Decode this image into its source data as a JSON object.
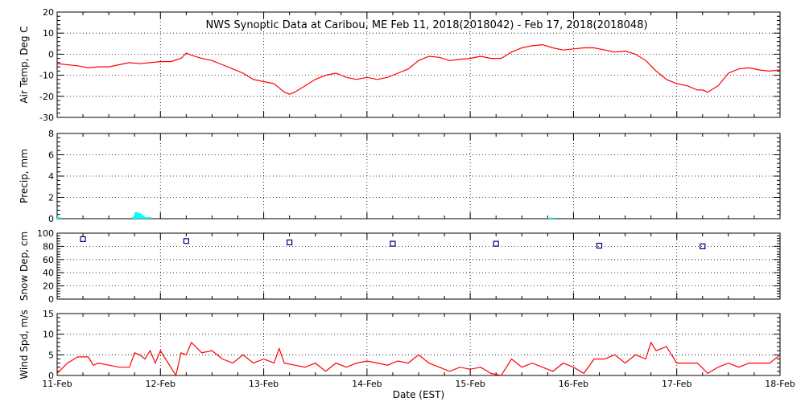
{
  "figure": {
    "title": "NWS Synoptic Data at Caribou, ME   Feb 11, 2018(2018042) - Feb 17, 2018(2018048)",
    "xlabel": "Date (EST)",
    "x_tick_labels": [
      "11-Feb",
      "12-Feb",
      "13-Feb",
      "14-Feb",
      "15-Feb",
      "16-Feb",
      "17-Feb",
      "18-Feb"
    ],
    "colors": {
      "line": "#ff0000",
      "precip": "#00ffff",
      "snow": "#000080",
      "axis": "#000000",
      "background": "#ffffff"
    }
  },
  "chart_data": [
    {
      "type": "line",
      "ylabel": "Air Temp, Deg C",
      "xlim": [
        0,
        7
      ],
      "ylim": [
        -30,
        20
      ],
      "y_ticks": [
        -30,
        -20,
        -10,
        0,
        10,
        20
      ],
      "grid": true,
      "x_unit": "days since 11-Feb 00:00 EST",
      "x": [
        0,
        0.2,
        0.3,
        0.4,
        0.5,
        0.6,
        0.7,
        0.8,
        0.9,
        1.0,
        1.1,
        1.2,
        1.25,
        1.3,
        1.4,
        1.5,
        1.6,
        1.7,
        1.8,
        1.9,
        2.0,
        2.1,
        2.15,
        2.2,
        2.25,
        2.3,
        2.4,
        2.5,
        2.6,
        2.7,
        2.8,
        2.9,
        3.0,
        3.1,
        3.2,
        3.3,
        3.4,
        3.5,
        3.6,
        3.7,
        3.8,
        3.9,
        4.0,
        4.1,
        4.2,
        4.3,
        4.4,
        4.5,
        4.6,
        4.7,
        4.8,
        4.9,
        5.0,
        5.1,
        5.2,
        5.3,
        5.4,
        5.5,
        5.6,
        5.7,
        5.8,
        5.9,
        6.0,
        6.1,
        6.2,
        6.25,
        6.3,
        6.4,
        6.5,
        6.6,
        6.7,
        6.8,
        6.9,
        7.0
      ],
      "series": [
        {
          "values": [
            -4.5,
            -5.5,
            -6.5,
            -6,
            -6,
            -5,
            -4,
            -4.5,
            -4,
            -3.5,
            -3.5,
            -2,
            0.5,
            -0.5,
            -2,
            -3,
            -5,
            -7,
            -9,
            -12,
            -13,
            -14,
            -16,
            -18,
            -19,
            -18,
            -15,
            -12,
            -10,
            -9,
            -11,
            -12,
            -11,
            -12,
            -11,
            -9,
            -7,
            -3,
            -1,
            -1.5,
            -3,
            -2.5,
            -2,
            -1,
            -2,
            -2,
            1,
            3,
            4,
            4.5,
            3,
            2,
            2.5,
            3,
            3,
            2,
            1,
            1.5,
            0,
            -3,
            -8,
            -12,
            -14,
            -15,
            -17,
            -17,
            -18,
            -15,
            -9,
            -7,
            -6.5,
            -7.5,
            -8,
            -7.5
          ]
        }
      ]
    },
    {
      "type": "bar",
      "ylabel": "Precip, mm",
      "xlim": [
        0,
        7
      ],
      "ylim": [
        0,
        8
      ],
      "y_ticks": [
        0,
        2,
        4,
        6,
        8
      ],
      "grid": true,
      "x_unit": "days since 11-Feb 00:00 EST",
      "x": [
        0.0,
        0.72,
        0.75,
        0.78,
        0.81,
        0.84,
        0.87,
        4.75,
        4.78
      ],
      "values": [
        0.15,
        0.15,
        0.6,
        0.5,
        0.3,
        0.15,
        0.15,
        0.1,
        0.1
      ]
    },
    {
      "type": "scatter",
      "ylabel": "Snow Dep, cm",
      "xlim": [
        0,
        7
      ],
      "ylim": [
        0,
        100
      ],
      "y_ticks": [
        0,
        20,
        40,
        60,
        80,
        100
      ],
      "grid": true,
      "x_unit": "days since 11-Feb 00:00 EST",
      "x": [
        0.25,
        1.25,
        2.25,
        3.25,
        4.25,
        5.25,
        6.25
      ],
      "values": [
        91,
        88,
        86,
        84,
        84,
        81,
        80
      ]
    },
    {
      "type": "line",
      "ylabel": "Wind Spd, m/s",
      "xlim": [
        0,
        7
      ],
      "ylim": [
        0,
        15
      ],
      "y_ticks": [
        0,
        5,
        10,
        15
      ],
      "grid": true,
      "x_unit": "days since 11-Feb 00:00 EST",
      "x": [
        0,
        0.1,
        0.2,
        0.3,
        0.35,
        0.4,
        0.5,
        0.6,
        0.7,
        0.75,
        0.8,
        0.85,
        0.9,
        0.95,
        1.0,
        1.05,
        1.1,
        1.15,
        1.2,
        1.25,
        1.3,
        1.4,
        1.5,
        1.6,
        1.7,
        1.8,
        1.9,
        2.0,
        2.1,
        2.15,
        2.2,
        2.3,
        2.4,
        2.5,
        2.6,
        2.7,
        2.8,
        2.9,
        3.0,
        3.1,
        3.2,
        3.3,
        3.4,
        3.5,
        3.6,
        3.7,
        3.8,
        3.9,
        4.0,
        4.1,
        4.2,
        4.3,
        4.4,
        4.5,
        4.6,
        4.7,
        4.8,
        4.9,
        5.0,
        5.1,
        5.2,
        5.3,
        5.4,
        5.5,
        5.6,
        5.7,
        5.75,
        5.8,
        5.9,
        6.0,
        6.1,
        6.2,
        6.3,
        6.4,
        6.5,
        6.6,
        6.7,
        6.8,
        6.9,
        7.0
      ],
      "series": [
        {
          "values": [
            0.5,
            3,
            4.5,
            4.5,
            2.5,
            3,
            2.5,
            2,
            2,
            5.5,
            5,
            4,
            6,
            3,
            6,
            4,
            2,
            0,
            5.5,
            5,
            8,
            5.5,
            6,
            4,
            3,
            5,
            3,
            4,
            3,
            6.5,
            3,
            2.5,
            2,
            3,
            1,
            3,
            2,
            3,
            3.5,
            3,
            2.5,
            3.5,
            3,
            5,
            3,
            2,
            1,
            2,
            1.5,
            2,
            0.5,
            0,
            4,
            2,
            3,
            2,
            1,
            3,
            2,
            0.5,
            4,
            4,
            5,
            3,
            5,
            4,
            8,
            6,
            7,
            3,
            3,
            3,
            0.5,
            2,
            3,
            2,
            3,
            3,
            3,
            5
          ]
        }
      ]
    }
  ]
}
